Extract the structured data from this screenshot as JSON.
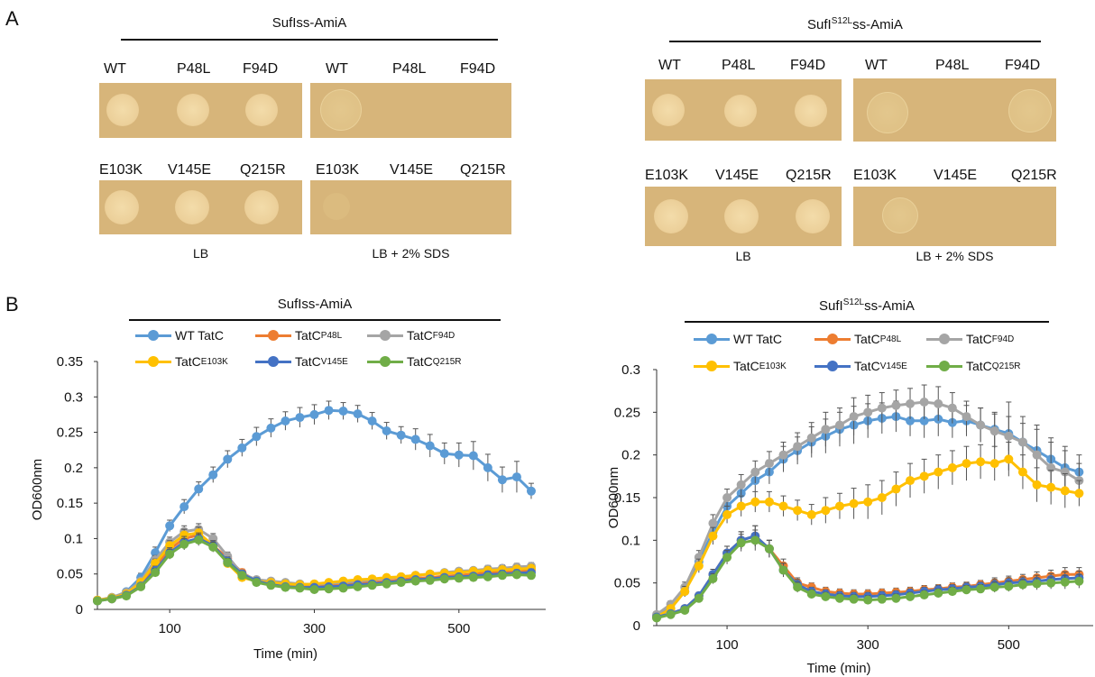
{
  "panel_a": {
    "letter": "A",
    "left": {
      "header_main": "SufIss-AmiA",
      "header_sup": "",
      "header_tail": "",
      "row1_labels": [
        "WT",
        "P48L",
        "F94D",
        "WT",
        "P48L",
        "F94D"
      ],
      "row2_labels": [
        "E103K",
        "V145E",
        "Q215R",
        "E103K",
        "V145E",
        "Q215R"
      ],
      "footer_lb": "LB",
      "footer_sds": "LB + 2% SDS"
    },
    "right": {
      "header_main": "SufI",
      "header_sup": "S12L",
      "header_tail": "ss-AmiA",
      "row1_labels": [
        "WT",
        "P48L",
        "F94D",
        "WT",
        "P48L",
        "F94D"
      ],
      "row2_labels": [
        "E103K",
        "V145E",
        "Q215R",
        "E103K",
        "V145E",
        "Q215R"
      ],
      "footer_lb": "LB",
      "footer_sds": "LB + 2% SDS"
    },
    "plate_color": "#d7b57a"
  },
  "panel_b": {
    "letter": "B",
    "legend": [
      {
        "main": "WT TatC",
        "sup": "",
        "color": "#5b9bd5"
      },
      {
        "main": "TatC",
        "sup": "P48L",
        "color": "#ed7d31"
      },
      {
        "main": "TatC",
        "sup": "F94D",
        "color": "#a5a5a5"
      },
      {
        "main": "TatC",
        "sup": "E103K",
        "color": "#ffc000"
      },
      {
        "main": "TatC",
        "sup": "V145E",
        "color": "#4472c4"
      },
      {
        "main": "TatC",
        "sup": "Q215R",
        "color": "#70ad47"
      }
    ]
  },
  "chart_data": [
    {
      "type": "line",
      "title_main": "SufIss-AmiA",
      "title_sup": "",
      "title_tail": "",
      "xlabel": "Time (min)",
      "ylabel": "OD600nm",
      "xlim": [
        0,
        620
      ],
      "ylim": [
        0,
        0.35
      ],
      "xticks": [
        100,
        300,
        500
      ],
      "yticks": [
        "0",
        "0.05",
        "0.1",
        "0.15",
        "0.2",
        "0.25",
        "0.3",
        "0.35"
      ],
      "x": [
        0,
        20,
        40,
        60,
        80,
        100,
        120,
        140,
        160,
        180,
        200,
        220,
        240,
        260,
        280,
        300,
        320,
        340,
        360,
        380,
        400,
        420,
        440,
        460,
        480,
        500,
        520,
        540,
        560,
        580,
        600
      ],
      "series": [
        {
          "name": "WT TatC",
          "color": "#5b9bd5",
          "values": [
            0.013,
            0.016,
            0.025,
            0.045,
            0.08,
            0.118,
            0.145,
            0.17,
            0.19,
            0.212,
            0.228,
            0.244,
            0.256,
            0.266,
            0.271,
            0.275,
            0.281,
            0.28,
            0.276,
            0.266,
            0.252,
            0.246,
            0.24,
            0.231,
            0.22,
            0.218,
            0.217,
            0.2,
            0.183,
            0.187,
            0.167
          ],
          "err": [
            0.003,
            0.003,
            0.004,
            0.006,
            0.008,
            0.008,
            0.01,
            0.01,
            0.011,
            0.012,
            0.012,
            0.013,
            0.013,
            0.013,
            0.014,
            0.014,
            0.013,
            0.012,
            0.012,
            0.012,
            0.012,
            0.012,
            0.015,
            0.016,
            0.015,
            0.017,
            0.02,
            0.019,
            0.018,
            0.022,
            0.011
          ]
        },
        {
          "name": "TatCP48L",
          "color": "#ed7d31",
          "values": [
            0.013,
            0.015,
            0.02,
            0.035,
            0.06,
            0.085,
            0.1,
            0.105,
            0.09,
            0.072,
            0.052,
            0.04,
            0.037,
            0.034,
            0.033,
            0.033,
            0.034,
            0.035,
            0.037,
            0.038,
            0.04,
            0.042,
            0.044,
            0.045,
            0.047,
            0.048,
            0.05,
            0.052,
            0.053,
            0.054,
            0.055
          ],
          "err": [
            0.002,
            0.002,
            0.003,
            0.004,
            0.006,
            0.007,
            0.008,
            0.008,
            0.007,
            0.006,
            0.005,
            0.004,
            0.004,
            0.004,
            0.004,
            0.004,
            0.004,
            0.004,
            0.004,
            0.004,
            0.004,
            0.004,
            0.004,
            0.004,
            0.004,
            0.004,
            0.004,
            0.005,
            0.005,
            0.005,
            0.005
          ]
        },
        {
          "name": "TatCF94D",
          "color": "#a5a5a5",
          "values": [
            0.013,
            0.017,
            0.024,
            0.04,
            0.07,
            0.095,
            0.11,
            0.113,
            0.1,
            0.075,
            0.05,
            0.042,
            0.04,
            0.038,
            0.036,
            0.035,
            0.037,
            0.038,
            0.04,
            0.042,
            0.044,
            0.046,
            0.048,
            0.05,
            0.052,
            0.054,
            0.055,
            0.057,
            0.058,
            0.06,
            0.061
          ],
          "err": [
            0.002,
            0.002,
            0.003,
            0.004,
            0.006,
            0.007,
            0.008,
            0.008,
            0.007,
            0.006,
            0.005,
            0.004,
            0.004,
            0.004,
            0.004,
            0.004,
            0.004,
            0.004,
            0.004,
            0.004,
            0.004,
            0.004,
            0.004,
            0.004,
            0.004,
            0.004,
            0.004,
            0.005,
            0.005,
            0.005,
            0.005
          ]
        },
        {
          "name": "TatCE103K",
          "color": "#ffc000",
          "values": [
            0.013,
            0.016,
            0.022,
            0.038,
            0.065,
            0.09,
            0.105,
            0.108,
            0.09,
            0.065,
            0.045,
            0.04,
            0.038,
            0.036,
            0.035,
            0.036,
            0.038,
            0.04,
            0.042,
            0.043,
            0.045,
            0.046,
            0.048,
            0.05,
            0.051,
            0.052,
            0.054,
            0.055,
            0.056,
            0.057,
            0.058
          ],
          "err": [
            0.002,
            0.002,
            0.003,
            0.004,
            0.006,
            0.007,
            0.008,
            0.008,
            0.007,
            0.006,
            0.005,
            0.004,
            0.004,
            0.004,
            0.004,
            0.004,
            0.004,
            0.004,
            0.004,
            0.004,
            0.004,
            0.004,
            0.004,
            0.004,
            0.004,
            0.004,
            0.004,
            0.005,
            0.005,
            0.005,
            0.005
          ]
        },
        {
          "name": "TatCV145E",
          "color": "#4472c4",
          "values": [
            0.012,
            0.015,
            0.02,
            0.033,
            0.055,
            0.08,
            0.095,
            0.1,
            0.09,
            0.068,
            0.05,
            0.04,
            0.035,
            0.032,
            0.031,
            0.031,
            0.032,
            0.033,
            0.035,
            0.036,
            0.038,
            0.04,
            0.042,
            0.043,
            0.045,
            0.046,
            0.047,
            0.049,
            0.05,
            0.051,
            0.052
          ],
          "err": [
            0.002,
            0.002,
            0.003,
            0.004,
            0.006,
            0.007,
            0.008,
            0.008,
            0.007,
            0.006,
            0.005,
            0.004,
            0.004,
            0.004,
            0.004,
            0.004,
            0.004,
            0.004,
            0.004,
            0.004,
            0.004,
            0.004,
            0.004,
            0.004,
            0.004,
            0.004,
            0.004,
            0.005,
            0.005,
            0.005,
            0.005
          ]
        },
        {
          "name": "TatCQ215R",
          "color": "#70ad47",
          "values": [
            0.012,
            0.015,
            0.019,
            0.032,
            0.052,
            0.078,
            0.092,
            0.098,
            0.088,
            0.066,
            0.048,
            0.038,
            0.034,
            0.031,
            0.03,
            0.028,
            0.029,
            0.03,
            0.032,
            0.034,
            0.036,
            0.038,
            0.04,
            0.041,
            0.043,
            0.044,
            0.045,
            0.046,
            0.048,
            0.049,
            0.048
          ],
          "err": [
            0.002,
            0.002,
            0.003,
            0.004,
            0.006,
            0.007,
            0.008,
            0.008,
            0.007,
            0.006,
            0.005,
            0.004,
            0.004,
            0.004,
            0.004,
            0.004,
            0.004,
            0.004,
            0.004,
            0.004,
            0.004,
            0.004,
            0.004,
            0.004,
            0.004,
            0.004,
            0.004,
            0.005,
            0.005,
            0.005,
            0.005
          ]
        }
      ]
    },
    {
      "type": "line",
      "title_main": "SufI",
      "title_sup": "S12L",
      "title_tail": "ss-AmiA",
      "xlabel": "Time (min)",
      "ylabel": "OD600nm",
      "xlim": [
        0,
        620
      ],
      "ylim": [
        0,
        0.3
      ],
      "xticks": [
        100,
        300,
        500
      ],
      "yticks": [
        "0",
        "0.05",
        "0.1",
        "0.15",
        "0.2",
        "0.25",
        "0.3"
      ],
      "x": [
        0,
        20,
        40,
        60,
        80,
        100,
        120,
        140,
        160,
        180,
        200,
        220,
        240,
        260,
        280,
        300,
        320,
        340,
        360,
        380,
        400,
        420,
        440,
        460,
        480,
        500,
        520,
        540,
        560,
        580,
        600
      ],
      "series": [
        {
          "name": "WT TatC",
          "color": "#5b9bd5",
          "values": [
            0.012,
            0.02,
            0.04,
            0.075,
            0.11,
            0.14,
            0.155,
            0.17,
            0.18,
            0.195,
            0.205,
            0.215,
            0.222,
            0.23,
            0.235,
            0.24,
            0.243,
            0.245,
            0.24,
            0.24,
            0.242,
            0.238,
            0.24,
            0.235,
            0.23,
            0.225,
            0.215,
            0.205,
            0.195,
            0.185,
            0.18
          ],
          "err": [
            0.003,
            0.004,
            0.006,
            0.008,
            0.01,
            0.01,
            0.012,
            0.013,
            0.014,
            0.015,
            0.016,
            0.018,
            0.02,
            0.02,
            0.022,
            0.02,
            0.018,
            0.018,
            0.018,
            0.02,
            0.02,
            0.018,
            0.018,
            0.02,
            0.02,
            0.02,
            0.022,
            0.025,
            0.025,
            0.025,
            0.02
          ]
        },
        {
          "name": "TatCP48L",
          "color": "#ed7d31",
          "values": [
            0.01,
            0.014,
            0.02,
            0.035,
            0.06,
            0.085,
            0.1,
            0.105,
            0.09,
            0.07,
            0.05,
            0.045,
            0.04,
            0.038,
            0.037,
            0.037,
            0.038,
            0.039,
            0.04,
            0.042,
            0.043,
            0.045,
            0.046,
            0.048,
            0.05,
            0.052,
            0.054,
            0.056,
            0.058,
            0.06,
            0.06
          ],
          "err": [
            0.002,
            0.002,
            0.003,
            0.004,
            0.006,
            0.008,
            0.01,
            0.012,
            0.01,
            0.008,
            0.006,
            0.005,
            0.005,
            0.005,
            0.005,
            0.005,
            0.005,
            0.005,
            0.005,
            0.005,
            0.005,
            0.005,
            0.005,
            0.005,
            0.006,
            0.006,
            0.006,
            0.007,
            0.007,
            0.008,
            0.008
          ]
        },
        {
          "name": "TatCF94D",
          "color": "#a5a5a5",
          "values": [
            0.013,
            0.025,
            0.045,
            0.08,
            0.12,
            0.15,
            0.165,
            0.18,
            0.19,
            0.2,
            0.21,
            0.22,
            0.23,
            0.235,
            0.245,
            0.25,
            0.255,
            0.258,
            0.26,
            0.262,
            0.26,
            0.255,
            0.245,
            0.235,
            0.228,
            0.222,
            0.215,
            0.2,
            0.185,
            0.18,
            0.17
          ],
          "err": [
            0.003,
            0.004,
            0.006,
            0.008,
            0.01,
            0.01,
            0.012,
            0.013,
            0.014,
            0.015,
            0.016,
            0.018,
            0.02,
            0.02,
            0.022,
            0.02,
            0.018,
            0.018,
            0.018,
            0.02,
            0.02,
            0.018,
            0.018,
            0.02,
            0.02,
            0.04,
            0.03,
            0.035,
            0.03,
            0.025,
            0.02
          ]
        },
        {
          "name": "TatCE103K",
          "color": "#ffc000",
          "values": [
            0.01,
            0.02,
            0.04,
            0.07,
            0.105,
            0.13,
            0.14,
            0.145,
            0.145,
            0.14,
            0.135,
            0.13,
            0.135,
            0.14,
            0.143,
            0.145,
            0.15,
            0.16,
            0.17,
            0.175,
            0.18,
            0.185,
            0.19,
            0.192,
            0.19,
            0.195,
            0.18,
            0.165,
            0.162,
            0.158,
            0.155
          ],
          "err": [
            0.003,
            0.004,
            0.006,
            0.008,
            0.01,
            0.01,
            0.012,
            0.012,
            0.012,
            0.012,
            0.012,
            0.012,
            0.015,
            0.015,
            0.018,
            0.02,
            0.02,
            0.02,
            0.02,
            0.02,
            0.02,
            0.02,
            0.02,
            0.02,
            0.02,
            0.02,
            0.02,
            0.02,
            0.02,
            0.02,
            0.015
          ]
        },
        {
          "name": "TatCV145E",
          "color": "#4472c4",
          "values": [
            0.01,
            0.014,
            0.02,
            0.035,
            0.06,
            0.085,
            0.1,
            0.105,
            0.09,
            0.065,
            0.048,
            0.04,
            0.037,
            0.035,
            0.034,
            0.034,
            0.035,
            0.036,
            0.038,
            0.04,
            0.042,
            0.043,
            0.045,
            0.046,
            0.048,
            0.05,
            0.051,
            0.052,
            0.054,
            0.055,
            0.056
          ],
          "err": [
            0.002,
            0.002,
            0.003,
            0.004,
            0.006,
            0.008,
            0.01,
            0.012,
            0.01,
            0.008,
            0.006,
            0.005,
            0.005,
            0.005,
            0.005,
            0.005,
            0.005,
            0.005,
            0.005,
            0.005,
            0.005,
            0.005,
            0.005,
            0.005,
            0.006,
            0.006,
            0.006,
            0.007,
            0.007,
            0.008,
            0.008
          ]
        },
        {
          "name": "TatCQ215R",
          "color": "#70ad47",
          "values": [
            0.009,
            0.013,
            0.018,
            0.032,
            0.055,
            0.08,
            0.097,
            0.1,
            0.09,
            0.065,
            0.045,
            0.037,
            0.034,
            0.032,
            0.031,
            0.03,
            0.031,
            0.032,
            0.034,
            0.036,
            0.038,
            0.04,
            0.042,
            0.043,
            0.045,
            0.046,
            0.048,
            0.049,
            0.05,
            0.051,
            0.052
          ],
          "err": [
            0.002,
            0.002,
            0.003,
            0.004,
            0.006,
            0.008,
            0.01,
            0.012,
            0.01,
            0.008,
            0.006,
            0.005,
            0.005,
            0.005,
            0.005,
            0.005,
            0.005,
            0.005,
            0.005,
            0.005,
            0.005,
            0.005,
            0.005,
            0.005,
            0.006,
            0.006,
            0.006,
            0.007,
            0.007,
            0.008,
            0.008
          ]
        }
      ]
    }
  ]
}
